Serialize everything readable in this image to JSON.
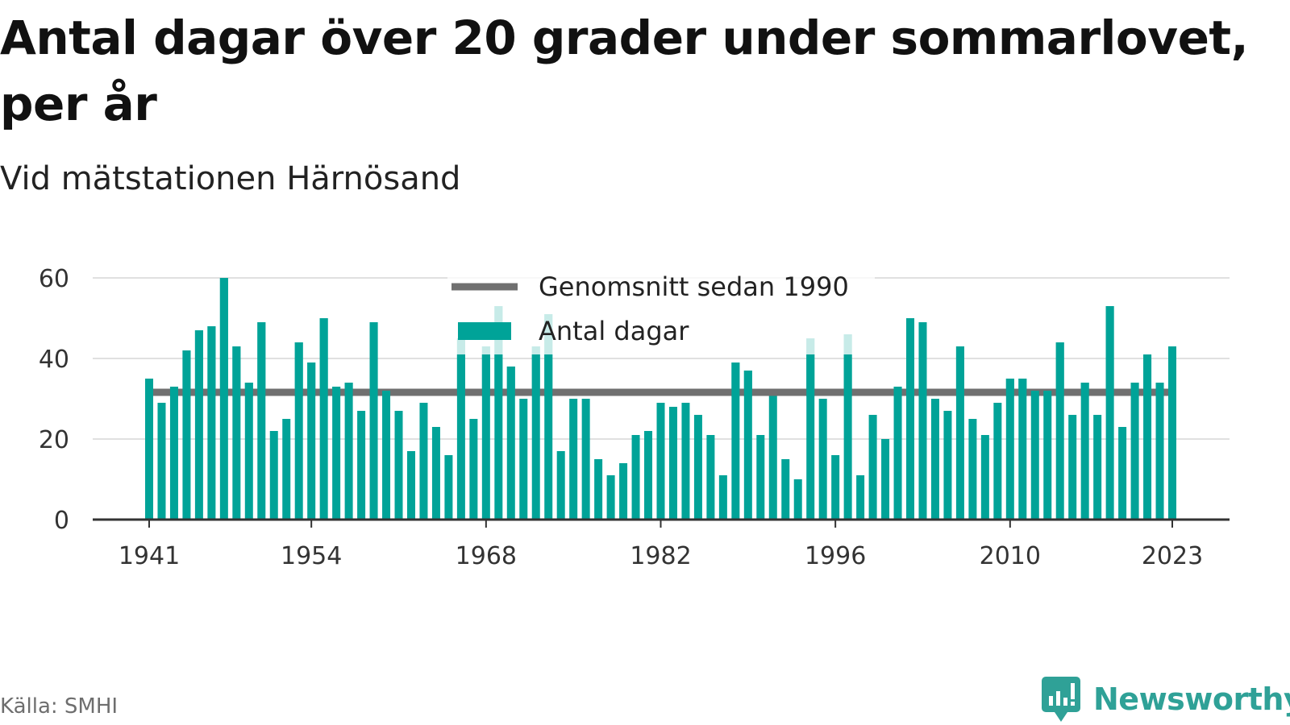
{
  "header": {
    "title": "Antal dagar över 20 grader under sommarlovet, per år",
    "subtitle": "Vid mätstationen Härnösand"
  },
  "footer": {
    "source": "Källa: SMHI",
    "brand": "Newsworthy"
  },
  "colors": {
    "bar": "#00a398",
    "average_line": "#707070",
    "grid": "#e0e0e0",
    "axis": "#333333",
    "brand": "#2fa197"
  },
  "chart_data": {
    "type": "bar",
    "title": "Antal dagar över 20 grader under sommarlovet, per år",
    "subtitle": "Vid mätstationen Härnösand",
    "x_tick_labels": [
      "1941",
      "1954",
      "1968",
      "1982",
      "1996",
      "2010",
      "2023"
    ],
    "y_tick_labels": [
      "0",
      "20",
      "40",
      "60"
    ],
    "ylim": [
      0,
      60
    ],
    "grid": true,
    "legend_position": "top-center",
    "categories": [
      1941,
      1942,
      1943,
      1944,
      1945,
      1946,
      1947,
      1948,
      1949,
      1950,
      1951,
      1952,
      1953,
      1954,
      1955,
      1956,
      1957,
      1958,
      1959,
      1960,
      1961,
      1962,
      1963,
      1964,
      1965,
      1966,
      1967,
      1968,
      1969,
      1970,
      1971,
      1972,
      1973,
      1974,
      1975,
      1976,
      1977,
      1978,
      1979,
      1980,
      1981,
      1982,
      1983,
      1984,
      1985,
      1986,
      1987,
      1988,
      1989,
      1990,
      1991,
      1992,
      1993,
      1994,
      1995,
      1996,
      1997,
      1998,
      1999,
      2000,
      2001,
      2002,
      2003,
      2004,
      2005,
      2006,
      2007,
      2008,
      2009,
      2010,
      2011,
      2012,
      2013,
      2014,
      2015,
      2016,
      2017,
      2018,
      2019,
      2020,
      2021,
      2022,
      2023
    ],
    "series": [
      {
        "name": "Antal dagar",
        "values": [
          35,
          29,
          33,
          42,
          47,
          48,
          60,
          43,
          34,
          49,
          22,
          25,
          44,
          39,
          50,
          33,
          34,
          27,
          49,
          32,
          27,
          17,
          29,
          23,
          16,
          45,
          25,
          43,
          53,
          38,
          30,
          43,
          51,
          17,
          30,
          30,
          15,
          11,
          14,
          21,
          22,
          29,
          28,
          29,
          26,
          21,
          11,
          39,
          37,
          21,
          31,
          15,
          10,
          45,
          30,
          16,
          46,
          11,
          26,
          20,
          33,
          50,
          49,
          30,
          27,
          43,
          25,
          21,
          29,
          35,
          35,
          32,
          32,
          44,
          26,
          34,
          26,
          53,
          23,
          34,
          41,
          34,
          43
        ]
      },
      {
        "name": "Genomsnitt sedan 1990",
        "value": 31.6
      }
    ],
    "legend": [
      "Genomsnitt sedan 1990",
      "Antal dagar"
    ]
  }
}
